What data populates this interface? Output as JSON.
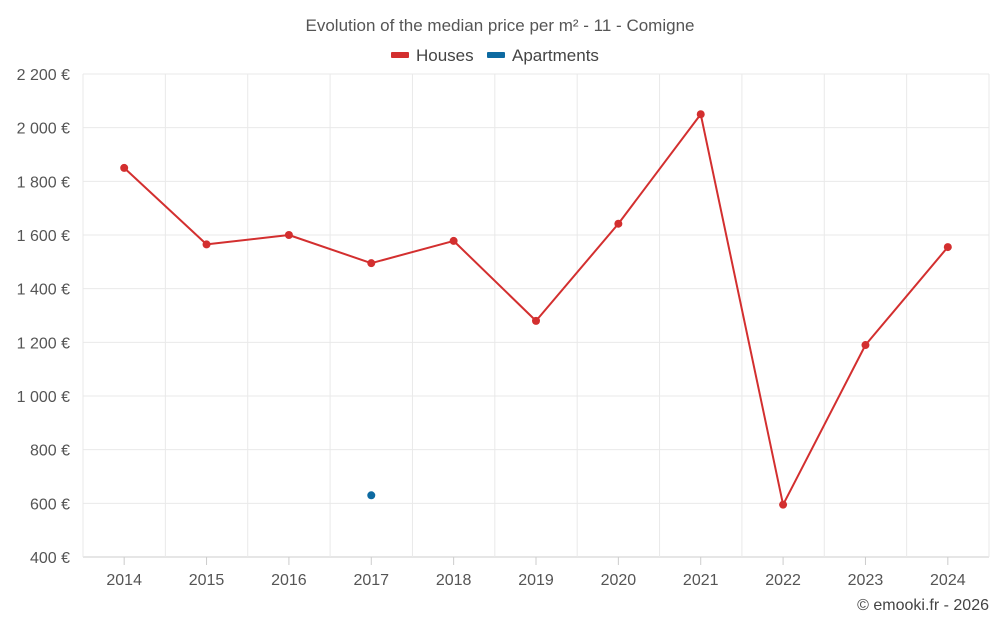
{
  "chart_data": {
    "type": "line",
    "title": "Evolution of the median price per m² - 11 - Comigne",
    "categories": [
      "2014",
      "2015",
      "2016",
      "2017",
      "2018",
      "2019",
      "2020",
      "2021",
      "2022",
      "2023",
      "2024"
    ],
    "y_ticks": [
      "400 €",
      "600 €",
      "800 €",
      "1 000 €",
      "1 200 €",
      "1 400 €",
      "1 600 €",
      "1 800 €",
      "2 000 €",
      "2 200 €"
    ],
    "ylim": [
      400,
      2200
    ],
    "grid": true,
    "legend_position": "top-center",
    "series": [
      {
        "name": "Houses",
        "color": "#d32f2f",
        "values": [
          1850,
          1565,
          1600,
          1495,
          1578,
          1280,
          1642,
          2050,
          595,
          1190,
          1555
        ]
      },
      {
        "name": "Apartments",
        "color": "#0d6aa1",
        "values": [
          null,
          null,
          null,
          630,
          null,
          null,
          null,
          null,
          null,
          null,
          null
        ]
      }
    ],
    "credit": "© emooki.fr - 2026"
  }
}
